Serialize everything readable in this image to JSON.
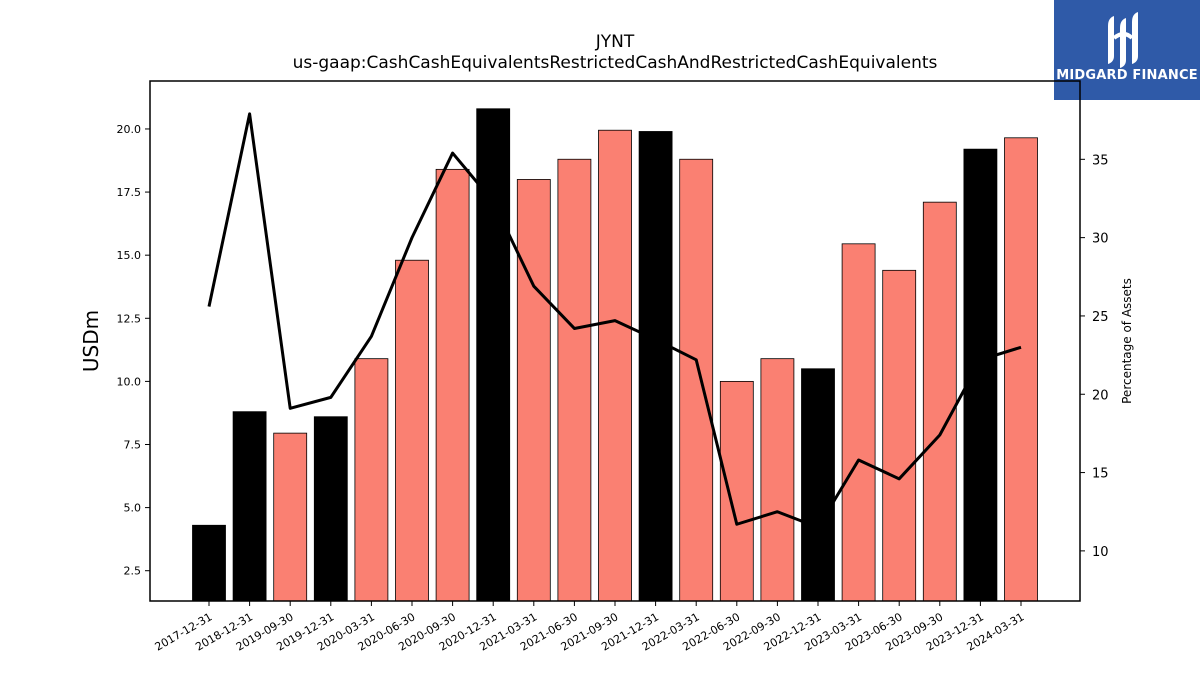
{
  "chart_data": {
    "type": "bar",
    "title": "JYNT",
    "subtitle": "us-gaap:CashCashEquivalentsRestrictedCashAndRestrictedCashEquivalents",
    "ylabel": "USDm",
    "y2label": "Percentage of Assets",
    "ylim": [
      1.3,
      21.9
    ],
    "y2lim": [
      6.8,
      40.0
    ],
    "yticks": [
      "2.5",
      "5.0",
      "7.5",
      "10.0",
      "12.5",
      "15.0",
      "17.5",
      "20.0"
    ],
    "y2ticks": [
      "10",
      "15",
      "20",
      "25",
      "30",
      "35"
    ],
    "categories": [
      "2017-12-31",
      "2018-12-31",
      "2019-09-30",
      "2019-12-31",
      "2020-03-31",
      "2020-06-30",
      "2020-09-30",
      "2020-12-31",
      "2021-03-31",
      "2021-06-30",
      "2021-09-30",
      "2021-12-31",
      "2022-03-31",
      "2022-06-30",
      "2022-09-30",
      "2022-12-31",
      "2023-03-31",
      "2023-06-30",
      "2023-09-30",
      "2023-12-31",
      "2024-03-31"
    ],
    "series": [
      {
        "values": [
          4.3,
          8.8,
          7.95,
          8.6,
          10.9,
          14.8,
          18.4,
          20.8,
          18.0,
          18.8,
          19.95,
          19.9,
          18.8,
          10.0,
          10.9,
          10.5,
          15.45,
          14.4,
          17.1,
          19.2,
          19.65
        ],
        "colors": [
          "#000000",
          "#000000",
          "#fa8072",
          "#000000",
          "#fa8072",
          "#fa8072",
          "#fa8072",
          "#000000",
          "#fa8072",
          "#fa8072",
          "#fa8072",
          "#000000",
          "#fa8072",
          "#fa8072",
          "#fa8072",
          "#000000",
          "#fa8072",
          "#fa8072",
          "#fa8072",
          "#000000",
          "#fa8072"
        ]
      },
      {
        "type": "line",
        "axis": "right",
        "values": [
          25.6,
          37.9,
          19.1,
          19.8,
          23.7,
          30.0,
          35.4,
          32.3,
          26.9,
          24.2,
          24.7,
          23.5,
          22.2,
          11.7,
          12.5,
          11.5,
          15.8,
          14.6,
          17.4,
          22.2,
          23.0
        ],
        "color": "#000000"
      }
    ],
    "grid": false,
    "legend": "none"
  },
  "colors": {
    "bar_annual": "#000000",
    "bar_quarter": "#fa8072",
    "logo_bg": "#2f5aa8"
  },
  "logo": {
    "text": "MIDGARD FINANCE",
    "icon": "midgard-m-icon"
  }
}
